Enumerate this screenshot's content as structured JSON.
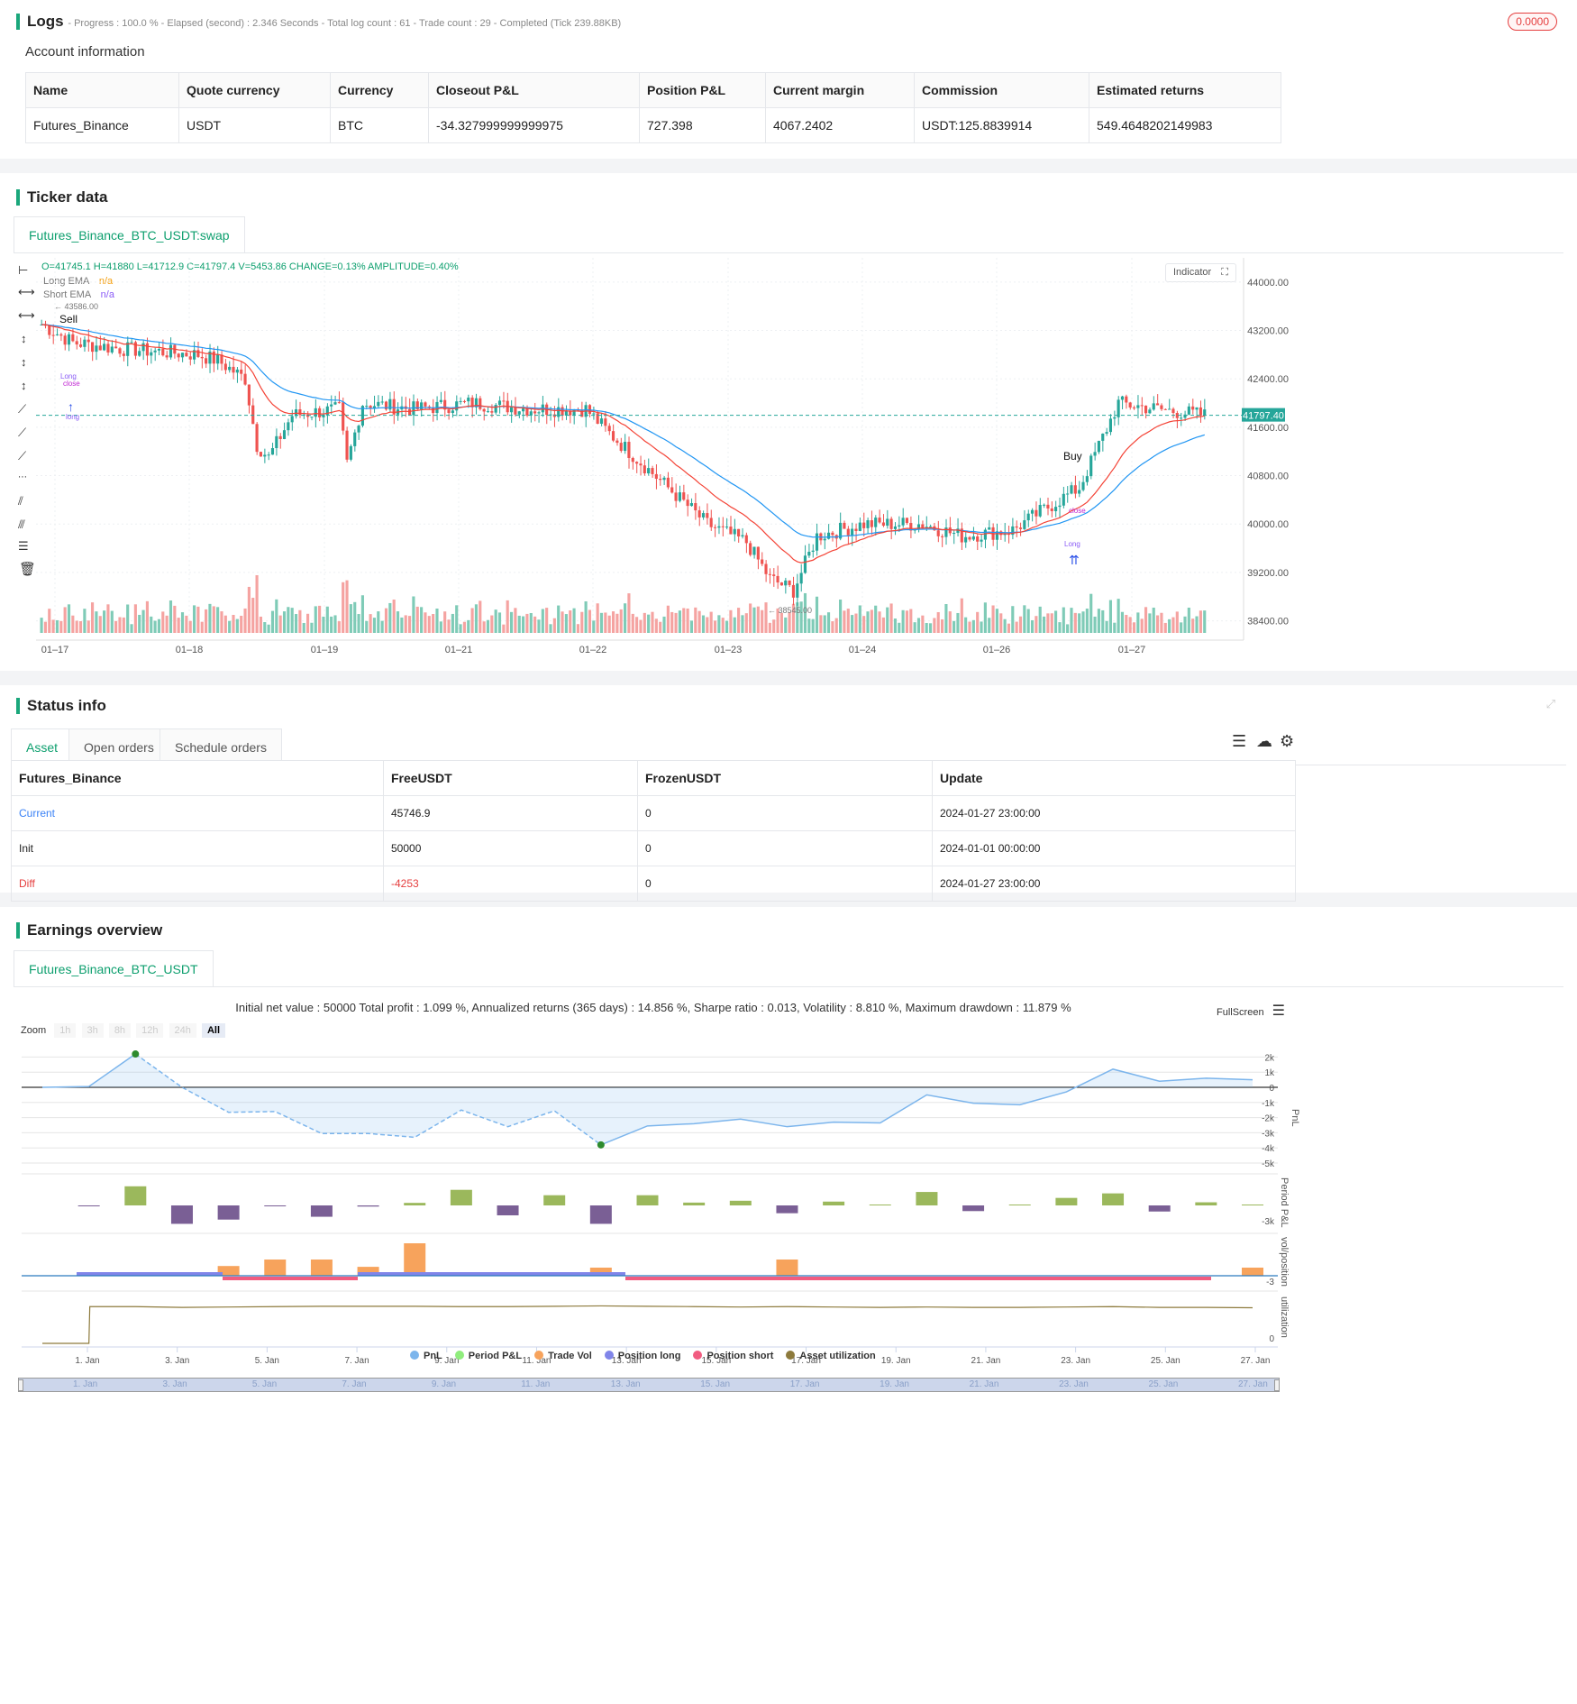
{
  "logs": {
    "title": "Logs",
    "status": "- Progress : 100.0 % - Elapsed (second) : 2.346  Seconds - Total log count : 61 - Trade count : 29 - Completed (Tick 239.88KB)",
    "badge": "0.0000"
  },
  "account": {
    "title": "Account information",
    "headers": [
      "Name",
      "Quote currency",
      "Currency",
      "Closeout P&L",
      "Position P&L",
      "Current margin",
      "Commission",
      "Estimated returns"
    ],
    "row": [
      "Futures_Binance",
      "USDT",
      "BTC",
      "-34.327999999999975",
      "727.398",
      "4067.2402",
      "USDT:125.8839914",
      "549.4648202149983"
    ]
  },
  "ticker": {
    "title": "Ticker data",
    "tab": "Futures_Binance_BTC_USDT:swap",
    "ohlc": "O=41745.1 H=41880 L=41712.9 C=41797.4 V=5453.86 CHANGE=0.13% AMPLITUDE=0.40%",
    "legend": [
      {
        "name": "Long EMA",
        "value": "n/a",
        "color": "#f59e0b"
      },
      {
        "name": "Short EMA",
        "value": "n/a",
        "color": "#8b5cf6"
      }
    ],
    "indicator_btn": "Indicator",
    "price_ticks": [
      "44000.00",
      "43200.00",
      "42400.00",
      "41600.00",
      "40800.00",
      "40000.00",
      "39200.00",
      "38400.00"
    ],
    "date_ticks": [
      "01–17",
      "01–18",
      "01–19",
      "01–21",
      "01–22",
      "01–23",
      "01–24",
      "01–26",
      "01–27"
    ],
    "last_price": "41797.40",
    "high_label": "43586.00",
    "low_label": "38545.00",
    "buy_label_1": "Buy",
    "sell_label": "Sell",
    "long_label": "Long",
    "close_label": "close",
    "long_small": "long",
    "colors": {
      "up": "#26a69a",
      "down": "#ef5350",
      "ema_long": "#2196f3",
      "ema_short": "#f44336"
    }
  },
  "status": {
    "title": "Status info",
    "tabs": [
      "Asset",
      "Open orders",
      "Schedule orders"
    ],
    "headers": [
      "Futures_Binance",
      "FreeUSDT",
      "FrozenUSDT",
      "Update"
    ],
    "rows": [
      [
        "Current",
        "45746.9",
        "0",
        "2024-01-27 23:00:00"
      ],
      [
        "Init",
        "50000",
        "0",
        "2024-01-01 00:00:00"
      ],
      [
        "Diff",
        "-4253",
        "0",
        "2024-01-27 23:00:00"
      ]
    ]
  },
  "earnings": {
    "title": "Earnings overview",
    "tab": "Futures_Binance_BTC_USDT",
    "summary": "Initial net value : 50000 Total profit : 1.099 %, Annualized returns (365 days) : 14.856 %, Sharpe ratio : 0.013, Volatility : 8.810 %, Maximum drawdown : 11.879 %",
    "fullscreen": "FullScreen",
    "zoom_label": "Zoom",
    "zoom_options": [
      "1h",
      "3h",
      "8h",
      "12h",
      "24h",
      "All"
    ],
    "pnl_ticks": [
      "2k",
      "1k",
      "0",
      "-1k",
      "-2k",
      "-3k",
      "-4k",
      "-5k"
    ],
    "axis_titles": [
      "PnL",
      "Period P&L",
      "vol/position",
      "utilization"
    ],
    "period_tick": "-3k",
    "vol_tick": "-3",
    "util_tick": "0",
    "date_ticks": [
      "1. Jan",
      "3. Jan",
      "5. Jan",
      "7. Jan",
      "9. Jan",
      "11. Jan",
      "13. Jan",
      "15. Jan",
      "17. Jan",
      "19. Jan",
      "21. Jan",
      "23. Jan",
      "25. Jan",
      "27. Jan"
    ],
    "legend": [
      {
        "name": "PnL",
        "color": "#7cb5ec"
      },
      {
        "name": "Period P&L",
        "color": "#90ed7d"
      },
      {
        "name": "Trade Vol",
        "color": "#f7a35c"
      },
      {
        "name": "Position long",
        "color": "#8085e9"
      },
      {
        "name": "Position short",
        "color": "#f15c80"
      },
      {
        "name": "Asset utilization",
        "color": "#8d7a3c"
      }
    ]
  },
  "chart_data": {
    "type": "line",
    "title": "",
    "x": [
      "1. Jan",
      "2. Jan",
      "3. Jan",
      "4. Jan",
      "5. Jan",
      "6. Jan",
      "7. Jan",
      "8. Jan",
      "9. Jan",
      "10. Jan",
      "11. Jan",
      "12. Jan",
      "13. Jan",
      "14. Jan",
      "15. Jan",
      "16. Jan",
      "17. Jan",
      "18. Jan",
      "19. Jan",
      "20. Jan",
      "21. Jan",
      "22. Jan",
      "23. Jan",
      "24. Jan",
      "25. Jan",
      "26. Jan",
      "27. Jan"
    ],
    "series": [
      {
        "name": "PnL",
        "values": [
          0,
          50,
          2200,
          0,
          -1650,
          -1600,
          -3050,
          -3050,
          -3300,
          -1500,
          -2600,
          -1550,
          -3800,
          -2550,
          -2400,
          -2100,
          -2600,
          -2300,
          -2350,
          -500,
          -1050,
          -1150,
          -300,
          1200,
          400,
          600,
          500
        ]
      },
      {
        "name": "Period P&L",
        "values": [
          0,
          -50,
          1350,
          -1300,
          -1000,
          -50,
          -800,
          -80,
          180,
          1100,
          -700,
          720,
          -1300,
          720,
          200,
          330,
          -550,
          270,
          60,
          950,
          -400,
          0,
          530,
          850,
          -430,
          220,
          0
        ]
      }
    ],
    "ylim": [
      -5000,
      2500
    ]
  }
}
